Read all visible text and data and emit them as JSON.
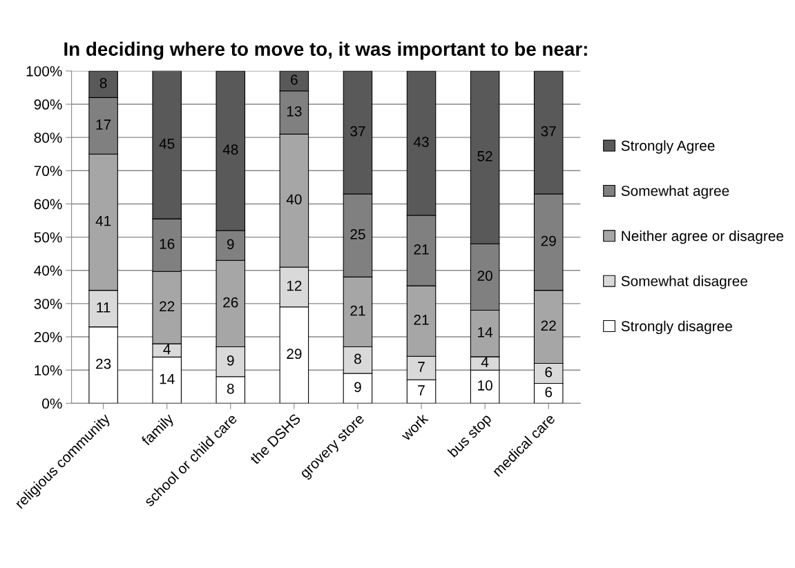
{
  "chart_data": {
    "type": "bar",
    "stacked": true,
    "title": "In deciding where to move to, it was important to be near:",
    "categories": [
      "religious community",
      "family",
      "school or child care",
      "the DSHS",
      "grovery store",
      "work",
      "bus stop",
      "medical care"
    ],
    "series": [
      {
        "name": "Strongly disagree",
        "color": "#ffffff",
        "values": [
          23,
          13.9,
          8,
          29,
          9,
          7.07,
          10,
          6
        ],
        "value_labels": [
          "23",
          "14",
          "8",
          "29",
          "9",
          "7",
          "10",
          "6"
        ]
      },
      {
        "name": "Somewhat disagree",
        "color": "#d9d9d9",
        "values": [
          11,
          4.0,
          9,
          12,
          8,
          7.07,
          4,
          6
        ],
        "value_labels": [
          "11",
          "4",
          "9",
          "12",
          "8",
          "7",
          "4",
          "6"
        ]
      },
      {
        "name": "Neither agree or disagree",
        "color": "#a6a6a6",
        "values": [
          41,
          21.8,
          26,
          40,
          21,
          21.21,
          14,
          22
        ],
        "value_labels": [
          "41",
          "22",
          "26",
          "40",
          "21",
          "21",
          "14",
          "22"
        ]
      },
      {
        "name": "Somewhat agree",
        "color": "#808080",
        "values": [
          17,
          15.8,
          9,
          13,
          25,
          21.21,
          20,
          29
        ],
        "value_labels": [
          "17",
          "16",
          "9",
          "13",
          "25",
          "21",
          "20",
          "29"
        ]
      },
      {
        "name": "Strongly Agree",
        "color": "#595959",
        "values": [
          8,
          44.6,
          48,
          6,
          37,
          43.43,
          52,
          37
        ],
        "value_labels": [
          "8",
          "45",
          "48",
          "6",
          "37",
          "43",
          "52",
          "37"
        ]
      }
    ],
    "ylim": [
      0,
      100
    ],
    "yticks": [
      {
        "value": 0,
        "label": "0%"
      },
      {
        "value": 10,
        "label": "10%"
      },
      {
        "value": 20,
        "label": "20%"
      },
      {
        "value": 30,
        "label": "30%"
      },
      {
        "value": 40,
        "label": "40%"
      },
      {
        "value": 50,
        "label": "50%"
      },
      {
        "value": 60,
        "label": "60%"
      },
      {
        "value": 70,
        "label": "70%"
      },
      {
        "value": 80,
        "label": "80%"
      },
      {
        "value": 90,
        "label": "90%"
      },
      {
        "value": 100,
        "label": "100%"
      }
    ],
    "grid": "y",
    "legend": "right"
  }
}
